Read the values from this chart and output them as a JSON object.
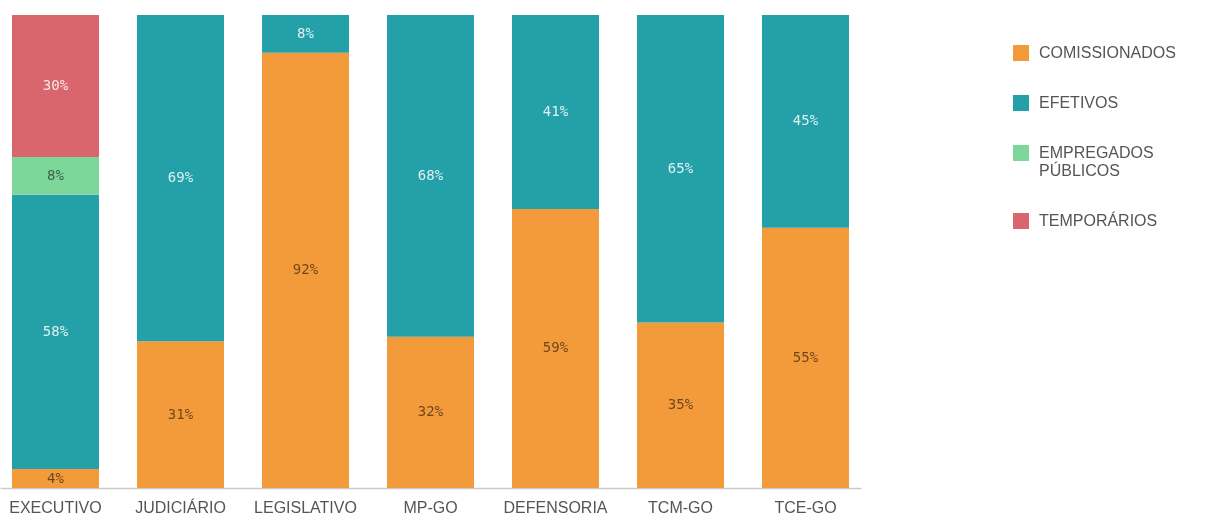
{
  "chart_data": {
    "type": "bar",
    "stacked": true,
    "categories": [
      "EXECUTIVO",
      "JUDICIÁRIO",
      "LEGISLATIVO",
      "MP-GO",
      "DEFENSORIA",
      "TCM-GO",
      "TCE-GO"
    ],
    "series": [
      {
        "name": "COMISSIONADOS",
        "color": "#f39a3a",
        "values": [
          4,
          31,
          92,
          32,
          59,
          35,
          55
        ],
        "value_labels": [
          "4%",
          "31%",
          "92%",
          "32%",
          "59%",
          "35%",
          "55%"
        ]
      },
      {
        "name": "EFETIVOS",
        "color": "#23a0a8",
        "values": [
          58,
          69,
          8,
          68,
          41,
          65,
          45
        ],
        "value_labels": [
          "58%",
          "69%",
          "8%",
          "68%",
          "41%",
          "65%",
          "45%"
        ]
      },
      {
        "name": "EMPREGADOS PÚBLICOS",
        "color": "#7dd69a",
        "values": [
          8,
          null,
          null,
          null,
          null,
          null,
          null
        ],
        "value_labels": [
          "8%",
          null,
          null,
          null,
          null,
          null,
          null
        ]
      },
      {
        "name": "TEMPORÁRIOS",
        "color": "#d9666d",
        "values": [
          30,
          null,
          null,
          null,
          null,
          null,
          null
        ],
        "value_labels": [
          "30%",
          null,
          null,
          null,
          null,
          null,
          null
        ]
      }
    ],
    "ylim": [
      0,
      100
    ],
    "tick_labels": "x",
    "legend": "top right"
  }
}
